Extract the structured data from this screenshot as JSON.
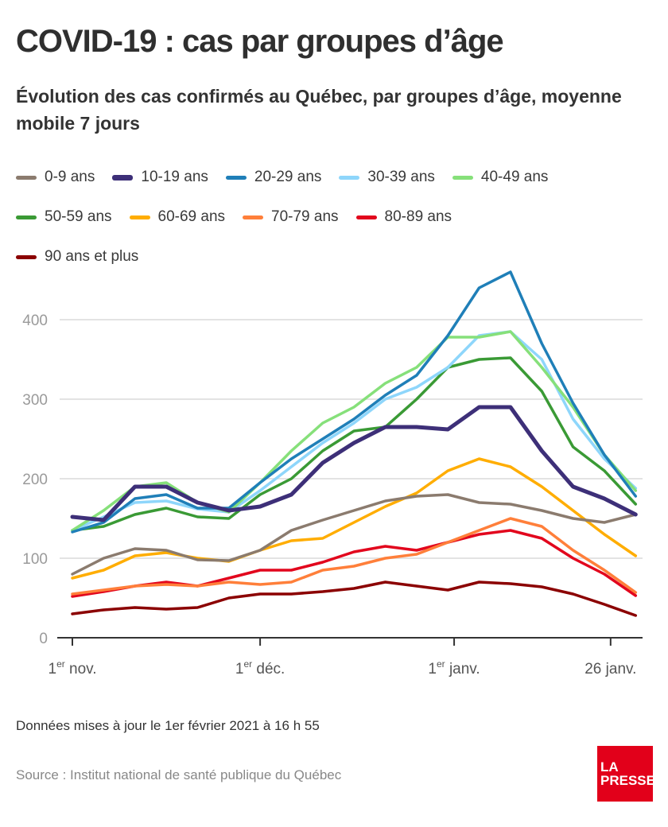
{
  "header": {
    "title": "COVID-19 : cas par groupes d’âge",
    "subtitle": "Évolution des cas confirmés au Québec, par groupes d’âge, moyenne mobile 7 jours"
  },
  "footer": {
    "updated": "Données mises à jour le 1er février 2021 à 16 h 55",
    "source": "Source : Institut national de santé publique du Québec",
    "logo_line1": "LA",
    "logo_line2": "PRESSE"
  },
  "chart_data": {
    "type": "line",
    "title": "COVID-19 : cas par groupes d’âge",
    "subtitle": "Évolution des cas confirmés au Québec, par groupes d’âge, moyenne mobile 7 jours",
    "xlabel": "",
    "ylabel": "",
    "x_unit": "days since 1 Nov 2020",
    "x": [
      0,
      5,
      10,
      15,
      20,
      25,
      30,
      35,
      40,
      45,
      50,
      55,
      60,
      65,
      70,
      75,
      80,
      85,
      90
    ],
    "xlim": [
      0,
      90
    ],
    "ylim": [
      0,
      460
    ],
    "yticks": [
      0,
      100,
      200,
      300,
      400
    ],
    "xticks": [
      {
        "day": 0,
        "label": "1",
        "sup": "er",
        "rest": " nov."
      },
      {
        "day": 30,
        "label": "1",
        "sup": "er",
        "rest": " déc."
      },
      {
        "day": 61,
        "label": "1",
        "sup": "er",
        "rest": " janv."
      },
      {
        "day": 86,
        "label": "26",
        "sup": "",
        "rest": " janv."
      }
    ],
    "grid": true,
    "legend_position": "top",
    "series": [
      {
        "name": "0-9 ans",
        "color": "#8b7b6e",
        "thick": false,
        "values": [
          80,
          100,
          112,
          110,
          98,
          97,
          110,
          135,
          148,
          160,
          172,
          178,
          180,
          170,
          168,
          160,
          150,
          145,
          155
        ]
      },
      {
        "name": "10-19 ans",
        "color": "#3d2f78",
        "thick": true,
        "values": [
          152,
          148,
          190,
          190,
          170,
          160,
          165,
          180,
          220,
          245,
          265,
          265,
          262,
          290,
          290,
          235,
          190,
          175,
          155
        ]
      },
      {
        "name": "20-29 ans",
        "color": "#1f7fb8",
        "thick": false,
        "values": [
          133,
          145,
          175,
          180,
          163,
          163,
          195,
          225,
          250,
          275,
          305,
          330,
          380,
          440,
          460,
          370,
          295,
          230,
          178
        ]
      },
      {
        "name": "30-39 ans",
        "color": "#8ed6fb",
        "thick": false,
        "values": [
          135,
          152,
          170,
          172,
          162,
          158,
          185,
          215,
          245,
          270,
          300,
          315,
          340,
          380,
          385,
          350,
          275,
          225,
          188
        ]
      },
      {
        "name": "40-49 ans",
        "color": "#86e07a",
        "thick": false,
        "values": [
          135,
          160,
          190,
          195,
          170,
          158,
          195,
          235,
          270,
          290,
          320,
          340,
          378,
          378,
          385,
          340,
          290,
          230,
          185
        ]
      },
      {
        "name": "50-59 ans",
        "color": "#3a9a35",
        "thick": false,
        "values": [
          135,
          140,
          155,
          163,
          152,
          150,
          180,
          200,
          235,
          260,
          265,
          300,
          340,
          350,
          352,
          310,
          240,
          210,
          168
        ]
      },
      {
        "name": "60-69 ans",
        "color": "#ffad00",
        "thick": false,
        "values": [
          75,
          85,
          103,
          107,
          100,
          96,
          110,
          122,
          125,
          145,
          165,
          182,
          210,
          225,
          215,
          190,
          160,
          130,
          103
        ]
      },
      {
        "name": "70-79 ans",
        "color": "#ff7f3a",
        "thick": false,
        "values": [
          55,
          60,
          65,
          67,
          65,
          70,
          67,
          70,
          85,
          90,
          100,
          105,
          120,
          135,
          150,
          140,
          110,
          85,
          57
        ]
      },
      {
        "name": "80-89 ans",
        "color": "#e2061d",
        "thick": false,
        "values": [
          52,
          58,
          65,
          70,
          65,
          75,
          85,
          85,
          95,
          108,
          115,
          110,
          120,
          130,
          135,
          125,
          100,
          80,
          53
        ]
      },
      {
        "name": "90 ans et plus",
        "color": "#8b0000",
        "thick": false,
        "values": [
          30,
          35,
          38,
          36,
          38,
          50,
          55,
          55,
          58,
          62,
          70,
          65,
          60,
          70,
          68,
          64,
          55,
          42,
          28
        ]
      }
    ]
  }
}
